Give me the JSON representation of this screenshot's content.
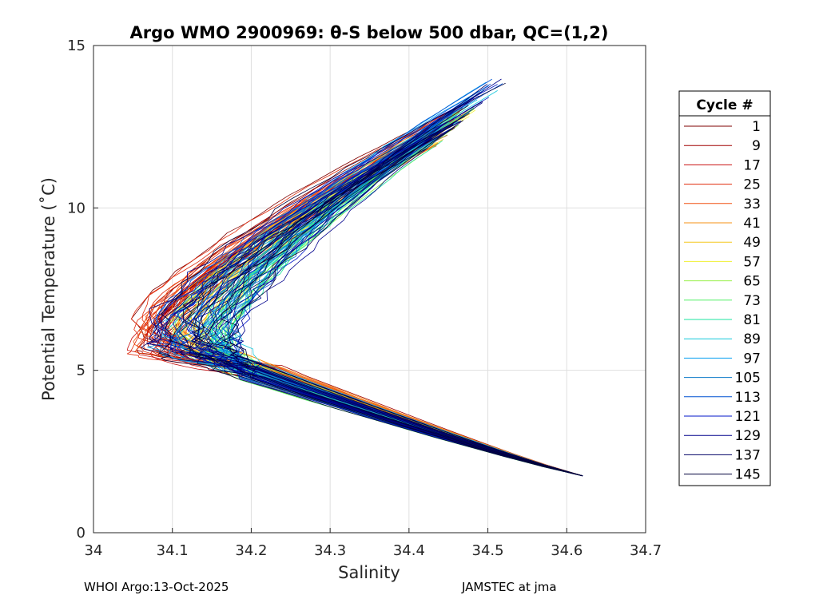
{
  "chart_data": {
    "type": "line",
    "title": "Argo WMO 2900969: θ-S below 500 dbar,  QC=(1,2)",
    "xlabel": "Salinity",
    "ylabel": "Potential Temperature (˚C)",
    "xlim": [
      34.0,
      34.7
    ],
    "ylim": [
      0,
      15
    ],
    "xticks": [
      "34",
      "34.1",
      "34.2",
      "34.3",
      "34.4",
      "34.5",
      "34.6",
      "34.7"
    ],
    "yticks": [
      "0",
      "5",
      "10",
      "15"
    ],
    "grid": true,
    "legend": {
      "title": "Cycle #",
      "placement": "outside-right",
      "entries": [
        {
          "label": "1",
          "color": "#7f0000"
        },
        {
          "label": "9",
          "color": "#a00000"
        },
        {
          "label": "17",
          "color": "#c81010"
        },
        {
          "label": "25",
          "color": "#e02a0a"
        },
        {
          "label": "33",
          "color": "#f05010"
        },
        {
          "label": "41",
          "color": "#f59014"
        },
        {
          "label": "49",
          "color": "#f5c81e"
        },
        {
          "label": "57",
          "color": "#f0f032"
        },
        {
          "label": "65",
          "color": "#96f046"
        },
        {
          "label": "73",
          "color": "#50f064"
        },
        {
          "label": "81",
          "color": "#1ee6a0"
        },
        {
          "label": "89",
          "color": "#14c8dc"
        },
        {
          "label": "97",
          "color": "#0aa0f0"
        },
        {
          "label": "105",
          "color": "#0a78c8"
        },
        {
          "label": "113",
          "color": "#0050d2"
        },
        {
          "label": "121",
          "color": "#0014c8"
        },
        {
          "label": "129",
          "color": "#00008c"
        },
        {
          "label": "137",
          "color": "#000064"
        },
        {
          "label": "145",
          "color": "#00003c"
        }
      ]
    },
    "series_shape": {
      "tip_salinity": 34.62,
      "tip_temperature": 1.75,
      "salinity_minimum_range": [
        34.04,
        34.18
      ],
      "salinity_minimum_temperature": 6.2,
      "top_salinity_range": [
        34.4,
        34.52
      ],
      "top_temperature_range": [
        12.0,
        14.3
      ]
    }
  },
  "footer": {
    "left": "WHOI Argo:13-Oct-2025",
    "right": "JAMSTEC at jma"
  }
}
